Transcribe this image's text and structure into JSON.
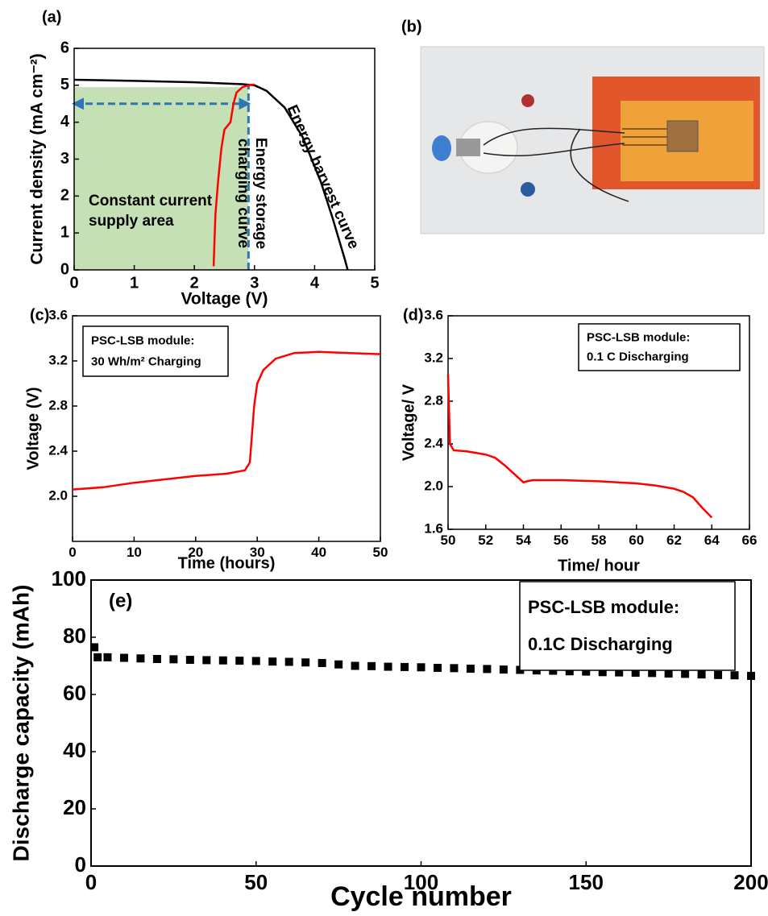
{
  "chart_data": [
    {
      "type": "line",
      "label": "(a)",
      "xlabel": "Voltage (V)",
      "ylabel": "Current density (mA cm⁻²)",
      "xlim": [
        0,
        5
      ],
      "ylim": [
        0,
        6
      ],
      "xticks": [
        0,
        1,
        2,
        3,
        4,
        5
      ],
      "yticks": [
        0,
        1,
        2,
        3,
        4,
        5,
        6
      ],
      "shaded_region": {
        "x": [
          0,
          2.9
        ],
        "y": [
          0,
          4.95
        ],
        "color": "#c5e0b4"
      },
      "dashed_lines": [
        {
          "x": [
            0,
            2.9
          ],
          "y": [
            4.5,
            4.5
          ],
          "color": "#2e75b6"
        },
        {
          "x": [
            2.9,
            2.9
          ],
          "y": [
            0,
            5
          ],
          "color": "#2e75b6"
        }
      ],
      "series": [
        {
          "color": "#000000",
          "x": [
            0,
            1,
            2,
            2.8,
            3,
            3.2,
            3.5,
            3.8,
            4.1,
            4.3,
            4.5,
            4.55
          ],
          "values": [
            5.15,
            5.12,
            5.08,
            5.03,
            5.0,
            4.85,
            4.4,
            3.6,
            2.4,
            1.4,
            0.3,
            0
          ]
        },
        {
          "color": "#ff0000",
          "x": [
            2.32,
            2.35,
            2.4,
            2.45,
            2.5,
            2.6,
            2.65,
            2.7,
            2.8,
            2.9,
            3.0
          ],
          "values": [
            0.1,
            1.5,
            2.5,
            3.3,
            3.8,
            4.0,
            4.5,
            4.8,
            4.95,
            5.0,
            5.02
          ]
        }
      ],
      "annotations": [
        {
          "lines": [
            "Constant current",
            "supply area"
          ],
          "color": "#5a9e3a"
        },
        {
          "lines": [
            "Energy storage",
            "charging curve"
          ],
          "color": "#ff0000"
        },
        {
          "lines": [
            "Energy harvest curve"
          ],
          "color": "#000000"
        }
      ]
    },
    {
      "type": "line",
      "label": "(c)",
      "xlabel": "Time (hours)",
      "ylabel": "Voltage (V)",
      "xlim": [
        0,
        50
      ],
      "ylim": [
        1.6,
        3.6
      ],
      "xticks": [
        0,
        10,
        20,
        30,
        40,
        50
      ],
      "yticks": [
        {
          "value": 2,
          "label": "2.0"
        },
        2.4,
        2.8,
        3.2,
        3.6
      ],
      "legend_box": [
        "PSC-LSB module:",
        "30 Wh/m² Charging"
      ],
      "series": [
        {
          "color": "#ff0000",
          "x": [
            0,
            5,
            10,
            20,
            25,
            28,
            28.8,
            29.5,
            30,
            31,
            33,
            36,
            40,
            45,
            50
          ],
          "values": [
            2.06,
            2.08,
            2.12,
            2.18,
            2.2,
            2.23,
            2.3,
            2.8,
            3.0,
            3.12,
            3.22,
            3.27,
            3.28,
            3.27,
            3.26
          ]
        }
      ]
    },
    {
      "type": "line",
      "label": "(d)",
      "xlabel": "Time/ hour",
      "ylabel": "Voltage/ V",
      "xlim": [
        50,
        66
      ],
      "ylim": [
        1.6,
        3.6
      ],
      "xticks": [
        50,
        52,
        54,
        56,
        58,
        60,
        62,
        64,
        66
      ],
      "yticks": [
        1.6,
        {
          "value": 2,
          "label": "2.0"
        },
        2.4,
        2.8,
        3.2,
        3.6
      ],
      "legend_box": [
        "PSC-LSB module:",
        "0.1 C Discharging"
      ],
      "series": [
        {
          "color": "#ff0000",
          "x": [
            50,
            50.1,
            50.3,
            51,
            52,
            52.5,
            53,
            53.5,
            54,
            54.2,
            54.5,
            56,
            58,
            60,
            61,
            62,
            62.5,
            63,
            63.5,
            64
          ],
          "values": [
            3.05,
            2.4,
            2.34,
            2.33,
            2.3,
            2.27,
            2.2,
            2.12,
            2.04,
            2.05,
            2.06,
            2.06,
            2.05,
            2.03,
            2.01,
            1.98,
            1.95,
            1.9,
            1.8,
            1.71
          ]
        }
      ]
    },
    {
      "type": "scatter",
      "label": "(e)",
      "xlabel": "Cycle number",
      "ylabel": "Discharge capacity (mAh)",
      "xlim": [
        0,
        200
      ],
      "ylim": [
        0,
        100
      ],
      "xticks": [
        0,
        50,
        100,
        150,
        200
      ],
      "yticks": [
        0,
        20,
        40,
        60,
        80,
        100
      ],
      "legend_box": [
        "PSC-LSB module:",
        "0.1C Discharging"
      ],
      "color": "#000000",
      "x": [
        1,
        2,
        5,
        10,
        15,
        20,
        25,
        30,
        35,
        40,
        45,
        50,
        55,
        60,
        65,
        70,
        75,
        80,
        85,
        90,
        95,
        100,
        105,
        110,
        115,
        120,
        125,
        130,
        135,
        140,
        145,
        150,
        155,
        160,
        165,
        170,
        175,
        180,
        185,
        190,
        195,
        200
      ],
      "values": [
        76.5,
        73,
        73,
        72.8,
        72.6,
        72.4,
        72.3,
        72.1,
        72,
        71.9,
        71.8,
        71.7,
        71.5,
        71.4,
        71.2,
        71,
        70.5,
        70,
        69.9,
        69.7,
        69.6,
        69.5,
        69.3,
        69.2,
        69,
        68.9,
        68.7,
        68.6,
        68.4,
        68.3,
        68.1,
        68,
        67.8,
        67.7,
        67.6,
        67.5,
        67.3,
        67.2,
        67,
        66.8,
        66.7,
        66.5
      ]
    }
  ],
  "panel_b": {
    "label": "(b)"
  }
}
